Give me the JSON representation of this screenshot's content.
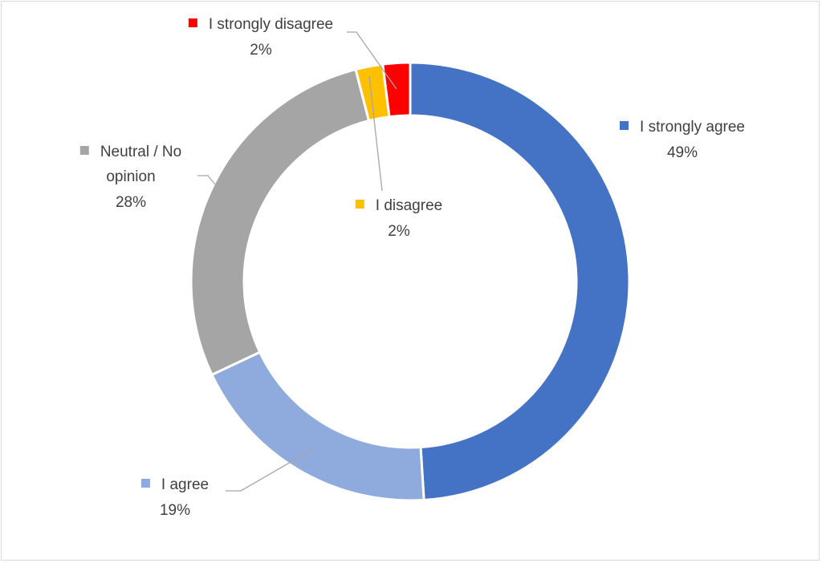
{
  "chart_data": {
    "type": "pie",
    "variant": "donut",
    "title": "",
    "legend": "none",
    "labels_position": "outside-with-leader-lines",
    "slices": [
      {
        "name": "I strongly agree",
        "pct_label": "49%",
        "value": 49,
        "color": "#4472C4"
      },
      {
        "name": "I agree",
        "pct_label": "19%",
        "value": 19,
        "color": "#8FAADC"
      },
      {
        "name": "Neutral / No opinion",
        "pct_label": "28%",
        "value": 28,
        "color": "#A5A5A5"
      },
      {
        "name": "I disagree",
        "pct_label": "2%",
        "value": 2,
        "color": "#FFC000"
      },
      {
        "name": "I strongly disagree",
        "pct_label": "2%",
        "value": 2,
        "color": "#FF0000"
      }
    ]
  }
}
